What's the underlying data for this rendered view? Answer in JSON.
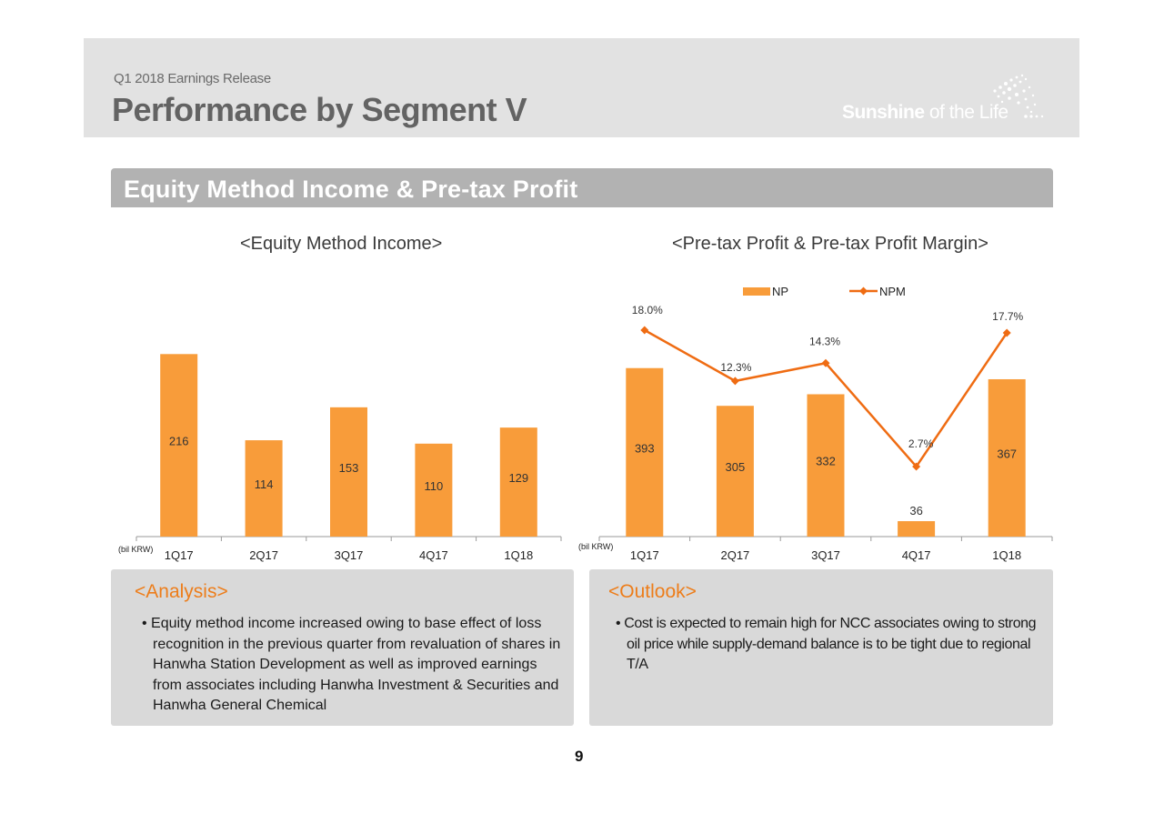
{
  "header": {
    "eyebrow": "Q1 2018 Earnings Release",
    "title": "Performance by Segment V",
    "brand_bold": "Sunshine",
    "brand_light": " of the Life"
  },
  "section": {
    "title": "Equity Method Income  & Pre-tax Profit"
  },
  "colors": {
    "bar": "#f89c3a",
    "line": "#ef6c13",
    "accent": "#ed7d1a",
    "header_bg": "#e2e2e2",
    "box_bg": "#d9d9d9"
  },
  "chart_data": [
    {
      "type": "bar",
      "title": "<Equity Method Income>",
      "unit_label": "(bil KRW)",
      "categories": [
        "1Q17",
        "2Q17",
        "3Q17",
        "4Q17",
        "1Q18"
      ],
      "values": [
        216,
        114,
        153,
        110,
        129
      ],
      "ylim": [
        0,
        240
      ],
      "grid": false,
      "legend": "none"
    },
    {
      "type": "bar+line",
      "title": "<Pre-tax Profit & Pre-tax Profit Margin>",
      "unit_label": "(bil KRW)",
      "categories": [
        "1Q17",
        "2Q17",
        "3Q17",
        "4Q17",
        "1Q18"
      ],
      "legend": "top",
      "grid": false,
      "series": [
        {
          "name": "NP",
          "type": "bar",
          "values": [
            393,
            305,
            332,
            36,
            367
          ],
          "ylim": [
            0,
            420
          ]
        },
        {
          "name": "NPM",
          "type": "line",
          "values": [
            18.0,
            12.3,
            14.3,
            2.7,
            17.7
          ],
          "labels": [
            "18.0%",
            "12.3%",
            "14.3%",
            "2.7%",
            "17.7%"
          ],
          "ylim": [
            -10,
            22
          ]
        }
      ]
    }
  ],
  "analysis": {
    "title": "<Analysis>",
    "text": "• Equity method income increased owing to base effect of loss recognition in the previous quarter from revaluation of shares in Hanwha Station Development as well as improved earnings from associates including Hanwha Investment & Securities and Hanwha General Chemical"
  },
  "outlook": {
    "title": "<Outlook>",
    "text": "• Cost is expected to remain high for NCC associates owing to strong oil price while supply-demand balance is to be tight due to regional T/A"
  },
  "page_number": "9"
}
